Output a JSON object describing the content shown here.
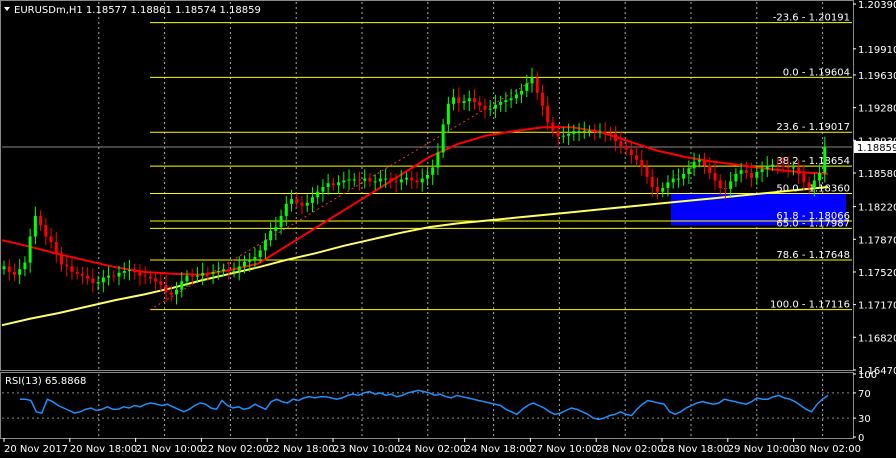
{
  "header": {
    "symbol_line": "EURUSDm,H1  1.18577 1.18861 1.18574 1.18859",
    "rsi_label": "RSI(13) 65.8868"
  },
  "colors": {
    "background": "#000000",
    "bull_candle": "#00ff00",
    "bear_candle": "#ff0000",
    "fib_line": "#ffff00",
    "ma_red": "#ff0000",
    "ma_yellow": "#ffff66",
    "rsi_line": "#1e90ff",
    "fib_box": "#0000ff",
    "grid": "#aaaaaa"
  },
  "chart_data": [
    {
      "type": "candlestick",
      "title": "EURUSDm,H1",
      "current_price": 1.18859,
      "ylim": [
        1.1647,
        1.2039
      ],
      "y_ticks": [
        1.2039,
        1.1991,
        1.1963,
        1.1928,
        1.1893,
        1.1858,
        1.1822,
        1.1787,
        1.1752,
        1.1717,
        1.1682,
        1.1647
      ],
      "x_labels": [
        "20 Nov 2017",
        "20 Nov 18:00",
        "21 Nov 10:00",
        "22 Nov 02:00",
        "22 Nov 18:00",
        "23 Nov 10:00",
        "24 Nov 02:00",
        "24 Nov 18:00",
        "27 Nov 10:00",
        "28 Nov 02:00",
        "28 Nov 18:00",
        "29 Nov 10:00",
        "30 Nov 02:00"
      ],
      "fib_levels": [
        {
          "label": "-23.6 - 1.20191",
          "price": 1.20191
        },
        {
          "label": "0.0 - 1.19604",
          "price": 1.19604
        },
        {
          "label": "23.6 - 1.19017",
          "price": 1.19017
        },
        {
          "label": "38.2 - 1.18654",
          "price": 1.18654
        },
        {
          "label": "50.0 - 1.18360",
          "price": 1.1836
        },
        {
          "label": "61.8 - 1.18066",
          "price": 1.18066
        },
        {
          "label": "65.0 - 1.17987",
          "price": 1.17987
        },
        {
          "label": "78.6 - 1.17648",
          "price": 1.17648
        },
        {
          "label": "100.0 - 1.17116",
          "price": 1.17116
        }
      ],
      "close_series": [
        1.1758,
        1.1752,
        1.1749,
        1.1755,
        1.1762,
        1.179,
        1.1812,
        1.1802,
        1.179,
        1.1784,
        1.1772,
        1.176,
        1.1758,
        1.1752,
        1.175,
        1.1748,
        1.1745,
        1.174,
        1.1741,
        1.1746,
        1.1748,
        1.1747,
        1.1751,
        1.1753,
        1.1754,
        1.1752,
        1.1748,
        1.1747,
        1.1745,
        1.1742,
        1.1738,
        1.173,
        1.1728,
        1.1733,
        1.1742,
        1.1748,
        1.1747,
        1.1748,
        1.1751,
        1.175,
        1.1752,
        1.1753,
        1.1755,
        1.1753,
        1.1753,
        1.1758,
        1.1763,
        1.1764,
        1.1768,
        1.1775,
        1.1786,
        1.1796,
        1.18,
        1.1812,
        1.1825,
        1.183,
        1.1826,
        1.1823,
        1.1826,
        1.1832,
        1.1838,
        1.1843,
        1.1847,
        1.1845,
        1.1848,
        1.185,
        1.1851,
        1.1851,
        1.185,
        1.1852,
        1.1849,
        1.1849,
        1.1852,
        1.1852,
        1.1849,
        1.1848,
        1.1851,
        1.1853,
        1.185,
        1.1848,
        1.1852,
        1.1856,
        1.1864,
        1.188,
        1.191,
        1.1932,
        1.1939,
        1.1933,
        1.1935,
        1.1938,
        1.1934,
        1.193,
        1.1926,
        1.1927,
        1.1931,
        1.1934,
        1.1936,
        1.1938,
        1.1942,
        1.1946,
        1.1954,
        1.196,
        1.1944,
        1.193,
        1.1912,
        1.1903,
        1.1897,
        1.1898,
        1.19,
        1.1903,
        1.1903,
        1.1903,
        1.1903,
        1.1902,
        1.1902,
        1.1901,
        1.19,
        1.1892,
        1.1887,
        1.1883,
        1.1877,
        1.1872,
        1.1865,
        1.1854,
        1.1843,
        1.1838,
        1.1842,
        1.1848,
        1.1852,
        1.1852,
        1.1857,
        1.1863,
        1.187,
        1.1872,
        1.1866,
        1.1858,
        1.185,
        1.1842,
        1.1841,
        1.1849,
        1.1857,
        1.1861,
        1.1858,
        1.1853,
        1.1859,
        1.1862,
        1.1866,
        1.1867,
        1.1866,
        1.1865,
        1.1863,
        1.1864,
        1.1857,
        1.1848,
        1.1842,
        1.185,
        1.1858,
        1.1886
      ],
      "ma_red_series": [
        1.1786,
        1.1779,
        1.1771,
        1.1764,
        1.1757,
        1.1752,
        1.175,
        1.1749,
        1.1754,
        1.1761,
        1.178,
        1.1799,
        1.1818,
        1.1837,
        1.1856,
        1.1875,
        1.1889,
        1.1898,
        1.1903,
        1.1907,
        1.1907,
        1.1902,
        1.1892,
        1.1882,
        1.1875,
        1.187,
        1.1866,
        1.1862,
        1.1859,
        1.1857
      ],
      "ma_yellow_series": [
        1.1695,
        1.1702,
        1.1708,
        1.1715,
        1.1722,
        1.1728,
        1.1735,
        1.1743,
        1.175,
        1.1757,
        1.1765,
        1.1772,
        1.178,
        1.1787,
        1.1794,
        1.18,
        1.1804,
        1.1807,
        1.181,
        1.1813,
        1.1816,
        1.1819,
        1.1822,
        1.1825,
        1.1828,
        1.1831,
        1.1834,
        1.1837,
        1.184,
        1.1843
      ]
    },
    {
      "type": "line",
      "title": "RSI(13) 65.8868",
      "ylim": [
        0,
        100
      ],
      "y_ticks": [
        100,
        70,
        30,
        0
      ],
      "values": [
        60,
        60,
        58,
        40,
        38,
        60,
        56,
        50,
        46,
        42,
        38,
        40,
        44,
        46,
        42,
        44,
        48,
        44,
        44,
        48,
        46,
        50,
        48,
        52,
        54,
        52,
        50,
        52,
        48,
        44,
        40,
        44,
        50,
        54,
        52,
        46,
        44,
        58,
        50,
        46,
        48,
        44,
        46,
        52,
        48,
        44,
        56,
        60,
        56,
        54,
        60,
        58,
        62,
        64,
        62,
        64,
        64,
        62,
        60,
        62,
        66,
        68,
        66,
        70,
        72,
        68,
        70,
        66,
        68,
        64,
        66,
        70,
        72,
        74,
        72,
        70,
        66,
        68,
        64,
        62,
        66,
        64,
        62,
        60,
        58,
        56,
        54,
        52,
        50,
        44,
        40,
        36,
        44,
        50,
        54,
        50,
        46,
        40,
        36,
        38,
        42,
        46,
        44,
        40,
        36,
        30,
        28,
        30,
        34,
        36,
        40,
        36,
        34,
        44,
        52,
        58,
        56,
        54,
        52,
        40,
        36,
        40,
        46,
        50,
        54,
        56,
        54,
        52,
        54,
        60,
        58,
        56,
        54,
        52,
        56,
        62,
        60,
        60,
        64,
        66,
        62,
        60,
        56,
        50,
        44,
        40,
        52,
        60,
        66
      ]
    }
  ]
}
